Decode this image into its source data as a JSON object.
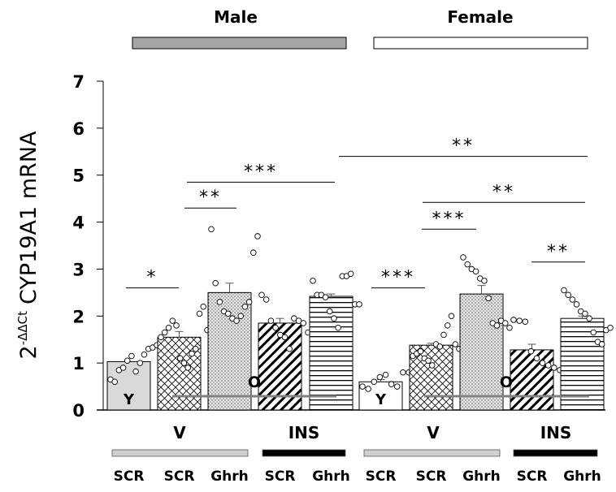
{
  "chart_data": {
    "type": "bar",
    "title": "",
    "ylabel_base": "2",
    "ylabel_sup": "-ΔΔCt",
    "ylabel_main": "CYP19A1 mRNA",
    "ylim": [
      0,
      7
    ],
    "yticks": [
      "0",
      "1",
      "2",
      "3",
      "4",
      "5",
      "6",
      "7"
    ],
    "sex_groups": [
      {
        "label": "Male",
        "bar_color": "#a6a6a6"
      },
      {
        "label": "Female",
        "bar_color": "#ffffff"
      }
    ],
    "treatment_groups": [
      {
        "label": "V",
        "bar_color": "#d0d0d0"
      },
      {
        "label": "INS",
        "bar_color": "#000000"
      },
      {
        "label": "V",
        "bar_color": "#d0d0d0"
      },
      {
        "label": "INS",
        "bar_color": "#000000"
      }
    ],
    "categories": [
      "SCR",
      "SCR",
      "Ghrh",
      "SCR",
      "Ghrh",
      "SCR",
      "SCR",
      "Ghrh",
      "SCR",
      "Ghrh"
    ],
    "bars": [
      {
        "sex": "Male",
        "treatment": "V",
        "shRNA": "SCR",
        "age": "Y",
        "value": 1.03,
        "sem": 0.0,
        "pattern": "solid-gray",
        "points": [
          0.65,
          0.6,
          0.85,
          0.9,
          1.05,
          1.15,
          0.82,
          1.0,
          1.18,
          1.3,
          1.33,
          1.38
        ]
      },
      {
        "sex": "Male",
        "treatment": "V",
        "shRNA": "SCR",
        "age": "O",
        "value": 1.55,
        "sem": 0.12,
        "pattern": "crosshatch",
        "points": [
          1.55,
          1.65,
          1.75,
          1.9,
          1.8,
          1.1,
          1.0,
          0.9,
          1.2,
          1.3,
          2.05,
          2.2,
          1.7
        ]
      },
      {
        "sex": "Male",
        "treatment": "V",
        "shRNA": "Ghrh",
        "age": "O",
        "value": 2.5,
        "sem": 0.2,
        "pattern": "dots",
        "points": [
          3.85,
          2.7,
          2.3,
          2.1,
          2.05,
          1.95,
          1.9,
          2.0,
          2.2,
          2.3,
          3.35,
          3.7
        ]
      },
      {
        "sex": "Male",
        "treatment": "INS",
        "shRNA": "SCR",
        "age": "O",
        "value": 1.85,
        "sem": 0.1,
        "pattern": "diagonal",
        "points": [
          2.45,
          2.35,
          1.9,
          1.75,
          1.6,
          1.55,
          1.3,
          1.95,
          1.9,
          1.85,
          1.65
        ]
      },
      {
        "sex": "Male",
        "treatment": "INS",
        "shRNA": "Ghrh",
        "age": "O",
        "value": 2.42,
        "sem": 0.05,
        "pattern": "horizontal",
        "points": [
          2.75,
          2.45,
          2.45,
          2.4,
          2.1,
          1.95,
          1.75,
          2.85,
          2.85,
          2.9,
          2.25,
          2.25
        ]
      },
      {
        "sex": "Female",
        "treatment": "V",
        "shRNA": "SCR",
        "age": "Y",
        "value": 0.6,
        "sem": 0.05,
        "pattern": "solid-white",
        "points": [
          0.5,
          0.45,
          0.6,
          0.7,
          0.75,
          0.55,
          0.5,
          0.8,
          0.8
        ]
      },
      {
        "sex": "Female",
        "treatment": "V",
        "shRNA": "SCR",
        "age": "O",
        "value": 1.38,
        "sem": 0.04,
        "pattern": "crosshatch",
        "points": [
          1.15,
          1.2,
          1.25,
          1.1,
          1.05,
          0.95,
          1.4,
          1.35,
          1.6,
          1.8,
          2.0,
          1.4,
          1.3
        ]
      },
      {
        "sex": "Female",
        "treatment": "V",
        "shRNA": "Ghrh",
        "age": "O",
        "value": 2.47,
        "sem": 0.18,
        "pattern": "dots",
        "points": [
          3.25,
          3.1,
          3.0,
          2.95,
          2.8,
          2.75,
          2.38,
          1.85,
          1.8,
          1.9,
          1.85,
          1.75
        ]
      },
      {
        "sex": "Female",
        "treatment": "INS",
        "shRNA": "SCR",
        "age": "O",
        "value": 1.28,
        "sem": 0.12,
        "pattern": "diagonal",
        "points": [
          1.92,
          1.9,
          1.88,
          1.25,
          1.1,
          1.0,
          0.95,
          0.9,
          0.85
        ]
      },
      {
        "sex": "Female",
        "treatment": "INS",
        "shRNA": "Ghrh",
        "age": "O",
        "value": 1.95,
        "sem": 0.05,
        "pattern": "horizontal",
        "points": [
          2.55,
          2.45,
          2.35,
          2.25,
          2.1,
          2.05,
          1.95,
          1.65,
          1.45,
          1.4,
          1.7,
          1.75
        ]
      }
    ],
    "age_labels": {
      "young": "Y",
      "old": "O"
    },
    "significance": [
      {
        "from": 0,
        "to": 1,
        "level": 0.15,
        "label": "*"
      },
      {
        "from": 1,
        "to": 2,
        "level": 4.3,
        "label": "**"
      },
      {
        "from": 1,
        "to": 4,
        "level": 4.85,
        "label": "***"
      },
      {
        "from": 5,
        "to": 6,
        "level": 2.6,
        "label": "***"
      },
      {
        "from": 6,
        "to": 7,
        "level": 3.85,
        "label": "***"
      },
      {
        "from": 6,
        "to": 9,
        "level": 4.42,
        "label": "**"
      },
      {
        "from": 4.7,
        "to": 9,
        "level": 5.4,
        "label": "**"
      },
      {
        "from": 8,
        "to": 9,
        "level": 3.15,
        "label": "**"
      }
    ],
    "grid": false,
    "legend": "none"
  }
}
